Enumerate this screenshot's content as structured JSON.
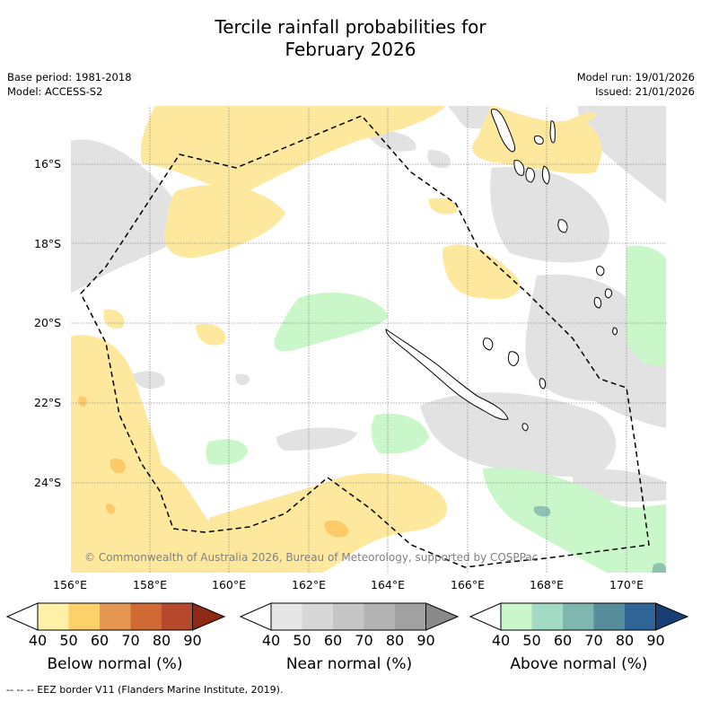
{
  "title": {
    "line1": "Tercile rainfall probabilities for",
    "line2": "February 2026"
  },
  "meta": {
    "base_period": "Base period: 1981-2018",
    "model": "Model: ACCESS-S2",
    "model_run": "Model run: 19/01/2026",
    "issued": "Issued: 21/01/2026"
  },
  "axes": {
    "lat_labels": [
      "16°S",
      "18°S",
      "20°S",
      "22°S",
      "24°S"
    ],
    "lon_labels": [
      "156°E",
      "158°E",
      "160°E",
      "162°E",
      "164°E",
      "166°E",
      "168°E",
      "170°E"
    ]
  },
  "copyright": "© Commonwealth of Australia 2026, Bureau of Meteorology, supported by COSPPac",
  "legends": [
    {
      "name": "Below normal (%)",
      "colors": [
        "#fff0a8",
        "#fed06a",
        "#e59650",
        "#d06a35",
        "#b6492b",
        "#8e2a14"
      ],
      "ticks": [
        "40",
        "50",
        "60",
        "70",
        "80",
        "90"
      ]
    },
    {
      "name": "Near normal (%)",
      "colors": [
        "#e6e6e6",
        "#d7d7d7",
        "#c6c6c6",
        "#b3b3b3",
        "#a1a1a1",
        "#8a8a8a"
      ],
      "ticks": [
        "40",
        "50",
        "60",
        "70",
        "80",
        "90"
      ]
    },
    {
      "name": "Above normal (%)",
      "colors": [
        "#c9f7c9",
        "#a2dac3",
        "#7fb6b0",
        "#588d9e",
        "#2f6497",
        "#173f74"
      ],
      "ticks": [
        "40",
        "50",
        "60",
        "70",
        "80",
        "90"
      ]
    }
  ],
  "footer": "--  --  -- EEZ border V11 (Flanders Marine Institute, 2019).",
  "colors": {
    "below_light": "#fee89e",
    "below_mid": "#fdca6a",
    "near_light": "#e2e2e2",
    "above_light": "#c9f7c9",
    "above_mid": "#8ec2b3",
    "grid": "#8c8c8c"
  }
}
